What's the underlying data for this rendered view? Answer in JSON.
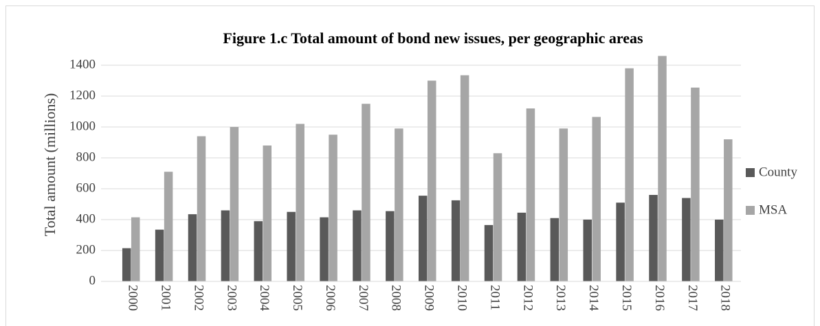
{
  "chart_data": {
    "type": "bar",
    "title": "Figure 1.c Total amount of bond new issues, per geographic areas",
    "y_label": "Total amount (millions)",
    "categories": [
      "2000",
      "2001",
      "2002",
      "2003",
      "2004",
      "2005",
      "2006",
      "2007",
      "2008",
      "2009",
      "2010",
      "2011",
      "2012",
      "2013",
      "2014",
      "2015",
      "2016",
      "2017",
      "2018"
    ],
    "series": [
      {
        "name": "County",
        "color": "#595959",
        "values": [
          215,
          335,
          435,
          460,
          390,
          450,
          415,
          460,
          455,
          555,
          525,
          365,
          445,
          410,
          400,
          510,
          560,
          540,
          400
        ]
      },
      {
        "name": "MSA",
        "color": "#a6a6a6",
        "values": [
          415,
          710,
          940,
          1000,
          880,
          1020,
          950,
          1150,
          990,
          1300,
          1335,
          830,
          1120,
          990,
          1065,
          1380,
          1460,
          1255,
          920
        ]
      }
    ],
    "ylim": [
      0,
      1500
    ],
    "yticks": [
      0,
      200,
      400,
      600,
      800,
      1000,
      1200,
      1400
    ],
    "grid": true,
    "legend": "right"
  }
}
